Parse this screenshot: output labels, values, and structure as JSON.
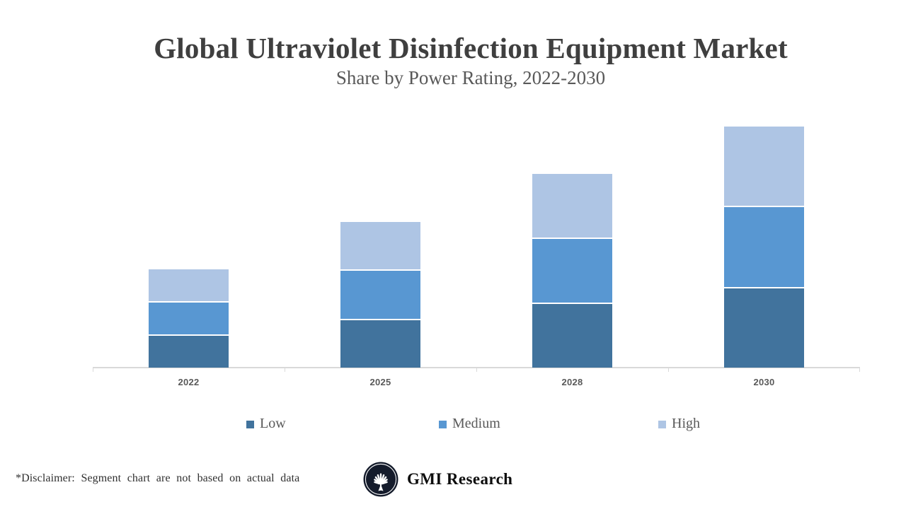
{
  "slide": {
    "title": "Global Ultraviolet Disinfection Equipment Market",
    "subtitle": "Share by Power Rating, 2022-2030"
  },
  "chart_data": {
    "type": "bar",
    "stacked": true,
    "title": "Global Ultraviolet Disinfection Equipment Market",
    "subtitle": "Share by Power Rating, 2022-2030",
    "categories": [
      "2022",
      "2025",
      "2028",
      "2030"
    ],
    "series": [
      {
        "name": "Low",
        "color": "#41739D",
        "values": [
          10,
          15,
          20,
          25
        ]
      },
      {
        "name": "Medium",
        "color": "#5897D2",
        "values": [
          10,
          15,
          20,
          25
        ]
      },
      {
        "name": "High",
        "color": "#AEC5E4",
        "values": [
          10,
          15,
          20,
          25
        ]
      }
    ],
    "stack_order_bottom_to_top": [
      "Low",
      "Medium",
      "High"
    ],
    "totals": [
      30,
      45,
      60,
      75
    ],
    "xlabel": "",
    "ylabel": "",
    "y_axis_visible": false,
    "x_axis_line_color": "#D9D9D9",
    "grid": false,
    "legend_position": "bottom",
    "data_labels": false
  },
  "legend": {
    "items": [
      {
        "label": "Low",
        "color": "#41739D"
      },
      {
        "label": "Medium",
        "color": "#5897D2"
      },
      {
        "label": "High",
        "color": "#AEC5E4"
      }
    ]
  },
  "footer": {
    "disclaimer": "*Disclaimer: Segment chart are not based on actual data",
    "brand": "GMI Research"
  },
  "colors": {
    "title": "#3F3F3F",
    "subtitle": "#595959",
    "tick_label": "#595959",
    "legend_text": "#595959",
    "axis": "#D9D9D9",
    "logo_navy": "#141B2B"
  }
}
